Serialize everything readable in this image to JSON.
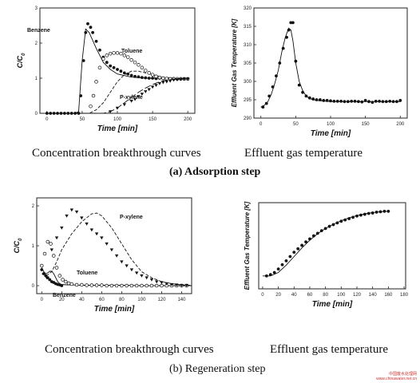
{
  "captions": {
    "top_left": "Concentration breakthrough curves",
    "top_right": "Effluent gas temperature",
    "section_a": "(a)  Adsorption step",
    "bottom_left": "Concentration breakthrough curves",
    "bottom_right": "Effluent gas temperature",
    "section_b": "(b) Regeneration step"
  },
  "watermark": [
    "中国废水处理网",
    "www.chinawater.net.cn"
  ],
  "chart_data": [
    {
      "id": "a1",
      "type": "line",
      "ylabel": "C/C0",
      "xlabel": "Time [min]",
      "xlim": [
        -10,
        210
      ],
      "ylim": [
        0,
        3
      ],
      "xticks": [
        0,
        50,
        100,
        150,
        200
      ],
      "yticks": [
        0,
        1,
        2,
        3
      ],
      "annotations": [
        "Benzene",
        "Toluene",
        "P-xylene"
      ],
      "series": [
        {
          "style": "solid",
          "x": [
            0,
            40,
            45,
            50,
            55,
            60,
            70,
            80,
            90,
            100,
            120,
            140,
            160,
            180,
            200
          ],
          "y": [
            0,
            0,
            0.05,
            1.5,
            2.4,
            2.3,
            1.85,
            1.45,
            1.25,
            1.12,
            1.03,
            1.0,
            1.0,
            0.99,
            0.98
          ]
        },
        {
          "style": "dot",
          "x": [
            0,
            5,
            10,
            15,
            20,
            25,
            30,
            35,
            40,
            45,
            48,
            52,
            55,
            58,
            62,
            65,
            70,
            75,
            80,
            85,
            90,
            95,
            100,
            105,
            110,
            115,
            120,
            125,
            130,
            135,
            140,
            145,
            150,
            155,
            160,
            165,
            170,
            175,
            180,
            185,
            190,
            195,
            200
          ],
          "y": [
            0,
            0,
            0,
            0,
            0,
            0,
            0,
            0,
            0,
            0,
            0.5,
            1.5,
            2.3,
            2.55,
            2.45,
            2.3,
            2.05,
            1.8,
            1.6,
            1.45,
            1.35,
            1.3,
            1.25,
            1.2,
            1.15,
            1.12,
            1.08,
            1.05,
            1.04,
            1.02,
            1.01,
            1.0,
            1.0,
            0.99,
            1.0,
            0.99,
            0.98,
            0.98,
            0.99,
            0.98,
            0.98,
            0.98,
            0.98
          ]
        },
        {
          "style": "dash",
          "x": [
            0,
            60,
            70,
            80,
            90,
            100,
            110,
            120,
            130,
            140,
            150,
            160,
            170,
            180,
            200
          ],
          "y": [
            0,
            0,
            0.1,
            0.3,
            0.6,
            0.9,
            1.1,
            1.2,
            1.2,
            1.15,
            1.1,
            1.05,
            1.02,
            1.0,
            0.98
          ]
        },
        {
          "style": "circle",
          "x": [
            62,
            66,
            70,
            75,
            80,
            85,
            90,
            95,
            100,
            105,
            110,
            115,
            120,
            125,
            130,
            135,
            140,
            145,
            150,
            155,
            160,
            165,
            170,
            175,
            180,
            185,
            190,
            195,
            200
          ],
          "y": [
            0.2,
            0.5,
            0.9,
            1.3,
            1.55,
            1.65,
            1.7,
            1.72,
            1.72,
            1.7,
            1.65,
            1.6,
            1.52,
            1.45,
            1.38,
            1.3,
            1.22,
            1.15,
            1.1,
            1.05,
            1.02,
            1.0,
            0.99,
            0.98,
            0.98,
            0.98,
            0.98,
            0.98,
            0.98
          ]
        },
        {
          "style": "longdash",
          "x": [
            0,
            80,
            90,
            100,
            110,
            120,
            130,
            140,
            150,
            160,
            170,
            180,
            190,
            200
          ],
          "y": [
            0,
            0,
            0.05,
            0.15,
            0.3,
            0.45,
            0.6,
            0.72,
            0.82,
            0.9,
            0.95,
            0.97,
            0.98,
            0.98
          ]
        },
        {
          "style": "triangle",
          "x": [
            90,
            100,
            110,
            120,
            125,
            130,
            135,
            140,
            145,
            150,
            155,
            160,
            165,
            170,
            175,
            180,
            185,
            190,
            195,
            200
          ],
          "y": [
            0.05,
            0.15,
            0.25,
            0.35,
            0.4,
            0.48,
            0.55,
            0.62,
            0.68,
            0.75,
            0.8,
            0.85,
            0.88,
            0.9,
            0.92,
            0.95,
            0.96,
            0.97,
            0.98,
            0.98
          ]
        }
      ]
    },
    {
      "id": "a2",
      "type": "line",
      "ylabel": "Effluent Gas Temperature [K]",
      "xlabel": "Time [min]",
      "xlim": [
        -10,
        210
      ],
      "ylim": [
        290,
        320
      ],
      "xticks": [
        0,
        50,
        100,
        150,
        200
      ],
      "yticks": [
        290,
        295,
        300,
        305,
        310,
        315,
        320
      ],
      "series": [
        {
          "style": "solid",
          "x": [
            0,
            5,
            10,
            15,
            20,
            25,
            30,
            35,
            40,
            43,
            46,
            50,
            55,
            60,
            65,
            70,
            80,
            100,
            150,
            200
          ],
          "y": [
            293,
            293.5,
            294.5,
            296.5,
            299.5,
            303,
            308,
            312,
            314.5,
            314,
            311,
            305,
            300,
            297.5,
            296,
            295.3,
            294.8,
            294.5,
            294.5,
            294.5
          ]
        },
        {
          "style": "dot",
          "x": [
            3,
            8,
            12,
            17,
            22,
            27,
            32,
            37,
            40,
            43,
            46,
            50,
            55,
            60,
            65,
            70,
            75,
            80,
            85,
            90,
            95,
            100,
            105,
            110,
            115,
            120,
            125,
            130,
            135,
            140,
            145,
            150,
            155,
            160,
            165,
            170,
            175,
            180,
            185,
            190,
            195,
            200
          ],
          "y": [
            293,
            294,
            296,
            298.5,
            301.5,
            305,
            309,
            312,
            314,
            316,
            316,
            305.5,
            299,
            297,
            296,
            295.5,
            295.2,
            295,
            295,
            294.8,
            294.8,
            294.7,
            294.6,
            294.6,
            294.6,
            294.5,
            294.5,
            294.6,
            294.6,
            294.5,
            294.4,
            294.8,
            294.5,
            294.3,
            294.6,
            294.6,
            294.5,
            294.5,
            294.6,
            294.5,
            294.5,
            294.8
          ]
        }
      ]
    },
    {
      "id": "b1",
      "type": "line",
      "ylabel": "C/C0",
      "xlabel": "Time [min]",
      "xlim": [
        -5,
        150
      ],
      "ylim": [
        -0.2,
        2.2
      ],
      "xticks": [
        0,
        20,
        40,
        60,
        80,
        100,
        120,
        140
      ],
      "yticks": [
        0,
        1,
        2
      ],
      "annotations": [
        "P-xylene",
        "Toluene",
        "Benzene"
      ],
      "series": [
        {
          "style": "solid",
          "x": [
            0,
            2,
            4,
            6,
            8,
            10,
            12,
            14,
            16,
            18,
            20,
            25,
            30,
            40,
            60,
            80,
            100,
            120,
            140,
            150
          ],
          "y": [
            0.45,
            0.35,
            0.3,
            0.32,
            0.36,
            0.36,
            0.3,
            0.2,
            0.1,
            0.05,
            0.03,
            0.02,
            0.02,
            0.01,
            0.01,
            0.01,
            0.0,
            0.0,
            0.0,
            0.0
          ]
        },
        {
          "style": "dot",
          "x": [
            0,
            2,
            4,
            6,
            8,
            10,
            12,
            14,
            16,
            18,
            20
          ],
          "y": [
            0.4,
            0.3,
            0.25,
            0.2,
            0.15,
            0.1,
            0.08,
            0.05,
            0.03,
            0.02,
            0.0
          ]
        },
        {
          "style": "circle",
          "x": [
            0,
            3,
            6,
            9,
            12,
            15,
            18,
            21,
            24,
            27,
            30,
            35,
            40,
            45,
            50,
            55,
            60,
            65,
            70,
            75,
            80,
            85,
            90,
            95,
            100,
            105,
            110,
            115,
            120,
            125,
            130,
            135,
            140,
            145
          ],
          "y": [
            0.5,
            0.8,
            1.1,
            1.05,
            0.75,
            0.45,
            0.25,
            0.15,
            0.1,
            0.06,
            0.04,
            0.02,
            0.02,
            0.01,
            0.01,
            0.01,
            0.01,
            0.0,
            0.0,
            0.0,
            0.0,
            0.0,
            0.0,
            0.0,
            0.0,
            0.0,
            0.0,
            0.0,
            0.0,
            0.0,
            0.0,
            0.0,
            0.0,
            0.0
          ]
        },
        {
          "style": "dash",
          "x": [
            0,
            5,
            10,
            15,
            20,
            30,
            40,
            50,
            55,
            60,
            70,
            80,
            90,
            100,
            110,
            120,
            130,
            140,
            150
          ],
          "y": [
            0.3,
            0.25,
            0.35,
            0.6,
            0.9,
            1.3,
            1.6,
            1.8,
            1.82,
            1.75,
            1.45,
            1.05,
            0.65,
            0.35,
            0.2,
            0.1,
            0.05,
            0.02,
            0.01
          ]
        },
        {
          "style": "triangle",
          "x": [
            5,
            10,
            15,
            20,
            25,
            30,
            35,
            40,
            45,
            50,
            55,
            60,
            65,
            70,
            75,
            80,
            85,
            90,
            95,
            100,
            105,
            110,
            115,
            120,
            125,
            130,
            135,
            140,
            145
          ],
          "y": [
            0.2,
            0.9,
            1.2,
            1.45,
            1.75,
            1.9,
            1.85,
            1.7,
            1.55,
            1.4,
            1.3,
            1.2,
            1.05,
            0.9,
            0.75,
            0.6,
            0.5,
            0.4,
            0.32,
            0.25,
            0.2,
            0.15,
            0.1,
            0.08,
            0.05,
            0.03,
            0.02,
            0.01,
            0.01
          ]
        }
      ]
    },
    {
      "id": "b2",
      "type": "line",
      "ylabel": "Effluent Gas Temperature [K]",
      "xlabel": "Time [min]",
      "xlim": [
        -5,
        182
      ],
      "ylim": [
        285,
        305
      ],
      "xticks": [
        0,
        20,
        40,
        60,
        80,
        100,
        120,
        140,
        160,
        180
      ],
      "yticks": [],
      "series": [
        {
          "style": "solid",
          "x": [
            0,
            10,
            20,
            30,
            40,
            50,
            60,
            70,
            80,
            90,
            100,
            110,
            120,
            130,
            140,
            150,
            160
          ],
          "y": [
            288,
            288,
            288.8,
            290.5,
            292.5,
            294.5,
            296.3,
            297.8,
            299,
            300,
            300.8,
            301.5,
            302,
            302.4,
            302.7,
            302.9,
            303
          ]
        },
        {
          "style": "dot",
          "x": [
            5,
            10,
            15,
            20,
            25,
            30,
            35,
            40,
            45,
            50,
            55,
            60,
            65,
            70,
            75,
            80,
            85,
            90,
            95,
            100,
            105,
            110,
            115,
            120,
            125,
            130,
            135,
            140,
            145,
            150,
            155,
            160
          ],
          "y": [
            288,
            288.3,
            288.8,
            289.6,
            290.6,
            291.5,
            292.5,
            293.5,
            294.3,
            295.1,
            295.9,
            296.6,
            297.3,
            297.9,
            298.5,
            299,
            299.5,
            299.9,
            300.3,
            300.7,
            301,
            301.3,
            301.6,
            301.9,
            302.1,
            302.3,
            302.5,
            302.6,
            302.8,
            302.9,
            303,
            303
          ]
        }
      ]
    }
  ]
}
